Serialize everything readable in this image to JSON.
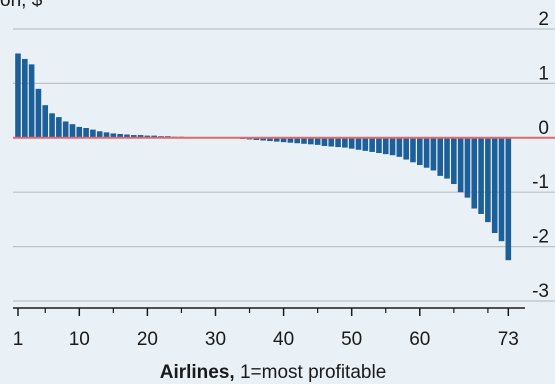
{
  "chart_data": {
    "type": "bar",
    "title": "",
    "ylabel_partial": "on, $",
    "xlabel_bold": "Airlines,",
    "xlabel_rest": " 1=most profitable",
    "x": [
      1,
      2,
      3,
      4,
      5,
      6,
      7,
      8,
      9,
      10,
      11,
      12,
      13,
      14,
      15,
      16,
      17,
      18,
      19,
      20,
      21,
      22,
      23,
      24,
      25,
      26,
      27,
      28,
      29,
      30,
      31,
      32,
      33,
      34,
      35,
      36,
      37,
      38,
      39,
      40,
      41,
      42,
      43,
      44,
      45,
      46,
      47,
      48,
      49,
      50,
      51,
      52,
      53,
      54,
      55,
      56,
      57,
      58,
      59,
      60,
      61,
      62,
      63,
      64,
      65,
      66,
      67,
      68,
      69,
      70,
      71,
      72,
      73
    ],
    "values": [
      1.55,
      1.45,
      1.35,
      0.9,
      0.6,
      0.45,
      0.38,
      0.3,
      0.25,
      0.2,
      0.18,
      0.15,
      0.12,
      0.1,
      0.08,
      0.07,
      0.06,
      0.05,
      0.05,
      0.04,
      0.04,
      0.03,
      0.03,
      0.02,
      0.02,
      0.01,
      0.01,
      0,
      0,
      0,
      0,
      0,
      0,
      -0.02,
      -0.03,
      -0.04,
      -0.05,
      -0.06,
      -0.07,
      -0.08,
      -0.09,
      -0.1,
      -0.11,
      -0.12,
      -0.13,
      -0.15,
      -0.16,
      -0.17,
      -0.18,
      -0.2,
      -0.22,
      -0.24,
      -0.26,
      -0.28,
      -0.3,
      -0.32,
      -0.35,
      -0.4,
      -0.45,
      -0.5,
      -0.55,
      -0.6,
      -0.7,
      -0.75,
      -0.85,
      -1.0,
      -1.1,
      -1.3,
      -1.4,
      -1.55,
      -1.75,
      -1.9,
      -2.25
    ],
    "xticks": [
      1,
      10,
      20,
      30,
      40,
      50,
      60,
      73
    ],
    "minor_xticks": [
      5,
      15,
      25,
      35,
      45,
      55,
      65,
      70
    ],
    "yticks": [
      2,
      1,
      0,
      -1,
      -2,
      -3
    ],
    "ylim": [
      -3,
      2.5
    ],
    "xlim": [
      0,
      78
    ],
    "grid": true,
    "colors": {
      "bar": "#1d5f99",
      "zero_line": "#e0696f",
      "grid": "#b9c3cc",
      "axis": "#1a1a1a",
      "background": "#e9f1f6"
    }
  }
}
